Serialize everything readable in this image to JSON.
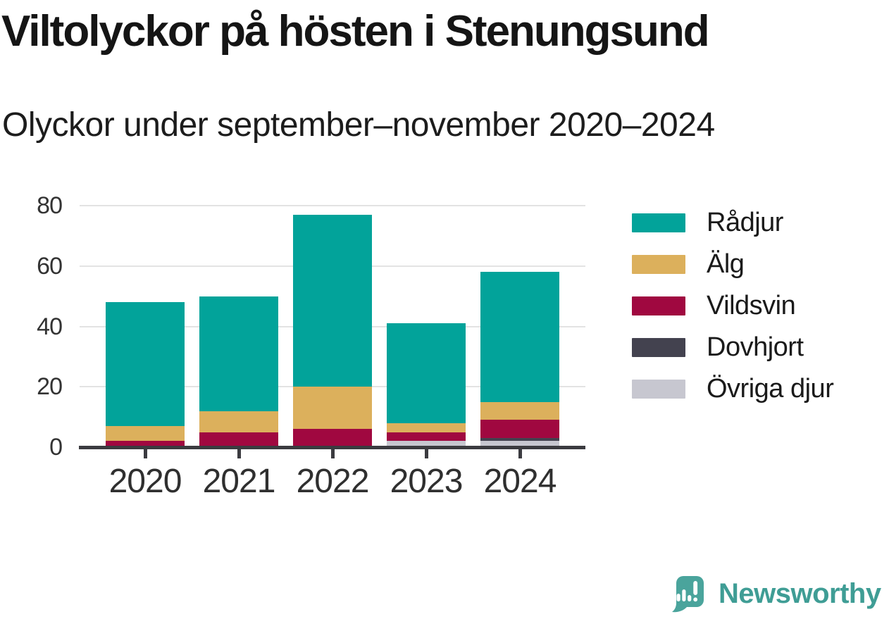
{
  "header": {
    "title": "Viltolyckor på hösten i Stenungsund",
    "subtitle": "Olyckor under september–november 2020–2024"
  },
  "chart_data": {
    "type": "bar",
    "stacked": true,
    "title": "Viltolyckor på hösten i Stenungsund",
    "subtitle": "Olyckor under september–november 2020–2024",
    "categories": [
      "2020",
      "2021",
      "2022",
      "2023",
      "2024"
    ],
    "series": [
      {
        "name": "Rådjur",
        "color": "#02a39a",
        "values": [
          41,
          38,
          57,
          33,
          43
        ]
      },
      {
        "name": "Älg",
        "color": "#dcb05c",
        "values": [
          5,
          7,
          14,
          3,
          6
        ]
      },
      {
        "name": "Vildsvin",
        "color": "#a00840",
        "values": [
          2,
          5,
          6,
          3,
          6
        ]
      },
      {
        "name": "Dovhjort",
        "color": "#43424f",
        "values": [
          0,
          0,
          0,
          0,
          1
        ]
      },
      {
        "name": "Övriga djur",
        "color": "#c7c7d0",
        "values": [
          0,
          0,
          0,
          2,
          2
        ]
      }
    ],
    "totals": [
      48,
      50,
      77,
      41,
      58
    ],
    "xlabel": "",
    "ylabel": "",
    "ylim": [
      0,
      80
    ],
    "yticks": [
      0,
      20,
      40,
      60,
      80
    ],
    "grid": true,
    "legend_position": "right"
  },
  "legend": {
    "items": [
      "Rådjur",
      "Älg",
      "Vildsvin",
      "Dovhjort",
      "Övriga djur"
    ]
  },
  "footer": {
    "brand": "Newsworthy",
    "logo_icon": "newsworthy-chart-bubble-icon"
  },
  "colors": {
    "axis": "#3b3b40",
    "gridline": "#e3e3e3",
    "title_text": "#151515",
    "axis_label": "#333333",
    "brand": "#3f9d95"
  }
}
